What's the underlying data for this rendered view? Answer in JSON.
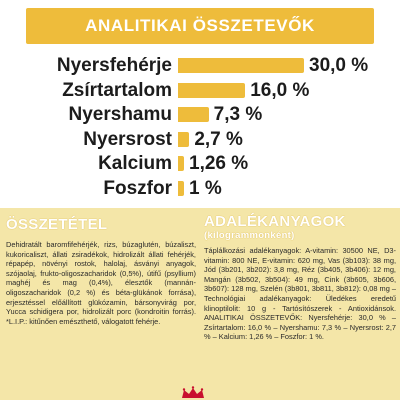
{
  "header": {
    "title": "ANALITIKAI ÖSSZETEVŐK"
  },
  "components": [
    {
      "label": "Nyersfehérje",
      "value_text": "30,0 %",
      "value": 30.0
    },
    {
      "label": "Zsírtartalom",
      "value_text": "16,0 %",
      "value": 16.0
    },
    {
      "label": "Nyershamu",
      "value_text": "7,3 %",
      "value": 7.3
    },
    {
      "label": "Nyersrost",
      "value_text": "2,7 %",
      "value": 2.7
    },
    {
      "label": "Kalcium",
      "value_text": "1,26 %",
      "value": 1.26
    },
    {
      "label": "Foszfor",
      "value_text": "1 %",
      "value": 1.0
    }
  ],
  "composition": {
    "title": "ÖSSZETÉTEL",
    "text": "Dehidratált baromfifehérjék, rizs, búzaglutén, búzaliszt, kukoricaliszt, állati zsiradékok, hidrolizált állati fehérjék, répapép, növényi rostok, halolaj, ásványi anyagok, szójaolaj, frukto-oligoszacharidok (0,5%), útifű (psyllium) maghéj és mag (0,4%), élesztők (mannán-oligoszacharidok (0,2 %) és béta-glükánok forrása), erjesztéssel előállított glükózamin, bársonyvirág por, Yucca schidigera por, hidrolizált porc (kondroitin forrás). *L.I.P.: kitűnően emészthető, válogatott fehérje."
  },
  "additives": {
    "title": "ADALÉKANYAGOK",
    "subtitle": "(kilogrammonként)",
    "text": "Táplálkozási adalékanyagok: A-vitamin: 30500 NE, D3-vitamin: 800 NE, E-vitamin: 620 mg, Vas (3b103): 38 mg, Jód (3b201, 3b202): 3,8 mg, Réz (3b405, 3b406): 12 mg, Mangán (3b502, 3b504): 49 mg, Cink (3b605, 3b606, 3b607): 128 mg, Szelén (3b801, 3b811, 3b812): 0,08 mg – Technológiai adalékanyagok: Üledékes eredetű klinoptilolit: 10 g - Tartósítószerek - Antioxidánsok. ANALITIKAI ÖSSZETEVŐK: Nyersfehérje: 30,0 % – Zsírtartalom: 16,0 % – Nyershamu: 7,3 % – Nyersrost: 2,7 % – Kalcium: 1,26 % – Foszfor: 1 %."
  },
  "brand": {
    "logo_name": "royal-canin-crown-logo",
    "accent_color": "#eebc3b",
    "panel_color": "#f4e6a8",
    "logo_color": "#c8102e"
  }
}
